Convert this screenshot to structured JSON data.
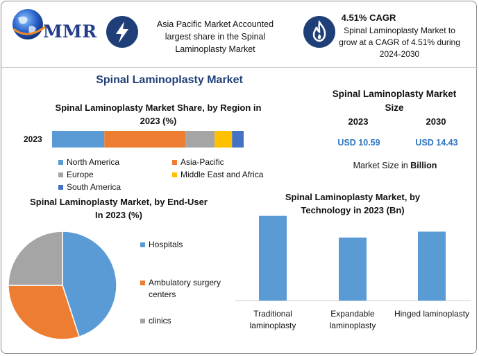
{
  "header": {
    "logo_text": "MMR",
    "box1": {
      "icon": "lightning-icon",
      "text": "Asia Pacific Market Accounted largest share in the Spinal Laminoplasty Market"
    },
    "box2": {
      "icon": "flame-icon",
      "title": "4.51% CAGR",
      "text": "Spinal Laminoplasty Market to grow at a CAGR of 4.51% during 2024-2030"
    }
  },
  "main_title": "Spinal Laminoplasty Market",
  "colors": {
    "north_america": "#5b9bd5",
    "asia_pacific": "#ed7d31",
    "europe": "#a5a5a5",
    "mea": "#ffc000",
    "south_america": "#4472c4",
    "icon_bg": "#1f3f78",
    "value_blue": "#2e74c0"
  },
  "market_size": {
    "title": "Spinal Laminoplasty Market Size",
    "years": [
      "2023",
      "2030"
    ],
    "values": [
      "USD 10.59",
      "USD 14.43"
    ],
    "note_prefix": "Market Size in ",
    "note_unit": "Billion"
  },
  "chart_data": [
    {
      "type": "bar",
      "orientation": "horizontal-stacked",
      "title": "Spinal Laminoplasty Market Share, by Region in 2023 (%)",
      "categories": [
        "2023"
      ],
      "series": [
        {
          "name": "North America",
          "values": [
            27
          ]
        },
        {
          "name": "Asia-Pacific",
          "values": [
            42
          ]
        },
        {
          "name": "Europe",
          "values": [
            15
          ]
        },
        {
          "name": "Middle East and Africa",
          "values": [
            9
          ]
        },
        {
          "name": "South America",
          "values": [
            6
          ]
        }
      ],
      "legend": "bottom",
      "grid": false
    },
    {
      "type": "pie",
      "title": "Spinal Laminoplasty Market, by End-User In 2023 (%)",
      "labels": [
        "Hospitals",
        "Ambulatory surgery centers",
        "clinics"
      ],
      "values": [
        45,
        30,
        25
      ],
      "legend": "right"
    },
    {
      "type": "bar",
      "title": "Spinal Laminoplasty Market, by Technology in 2023 (Bn)",
      "categories": [
        "Traditional laminoplasty",
        "Expandable laminoplasty",
        "Hinged laminoplasty"
      ],
      "values": [
        4.3,
        3.2,
        3.5
      ],
      "ylim": [
        0,
        4.5
      ],
      "grid": false
    }
  ]
}
